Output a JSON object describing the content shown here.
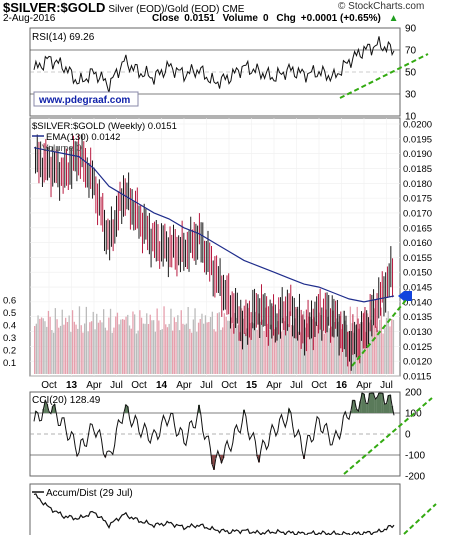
{
  "header": {
    "symbol": "$SILVER:$GOLD",
    "description": "Silver (EOD)/Gold (EOD) CME",
    "date": "2-Aug-2016",
    "close_label": "Close",
    "close_value": "0.0151",
    "volume_label": "Volume",
    "volume_value": "0",
    "chg_label": "Chg",
    "chg_value": "+0.0001 (+0.65%)",
    "chg_arrow": "up-arrow-icon",
    "brand": "© StockCharts.com"
  },
  "watermark": "www.pdegraaf.com",
  "colors": {
    "up": "#000000",
    "down": "#b0002a",
    "ema": "#1f2d8c",
    "trend": "#33aa11",
    "cci_pos": "#5a7a5a",
    "cci_neg": "#8a4a4a",
    "marker": "#1144dd"
  },
  "chart_data": [
    {
      "type": "line",
      "panel": "RSI",
      "legend": "RSI(14) 69.26",
      "ylim": [
        10,
        90
      ],
      "ticks": [
        10,
        30,
        50,
        70,
        90
      ],
      "reference_lines": [
        30,
        70
      ],
      "x": [
        "2012-08",
        "2012-10",
        "2012-12",
        "2013-02",
        "2013-04",
        "2013-06",
        "2013-08",
        "2013-10",
        "2013-12",
        "2014-02",
        "2014-04",
        "2014-06",
        "2014-08",
        "2014-10",
        "2014-12",
        "2015-02",
        "2015-04",
        "2015-06",
        "2015-08",
        "2015-10",
        "2015-12",
        "2016-02",
        "2016-04",
        "2016-06",
        "2016-08"
      ],
      "values": [
        52,
        62,
        55,
        40,
        50,
        38,
        60,
        50,
        45,
        55,
        48,
        52,
        40,
        45,
        55,
        50,
        45,
        52,
        48,
        50,
        45,
        60,
        70,
        75,
        69.26
      ]
    },
    {
      "type": "line",
      "panel": "price",
      "legends": [
        "$SILVER:$GOLD (Weekly) 0.0151",
        "EMA(130) 0.0142",
        "Volume 0"
      ],
      "ylim": [
        0.0115,
        0.02
      ],
      "ticks": [
        0.0115,
        0.012,
        0.0125,
        0.013,
        0.0135,
        0.014,
        0.0145,
        0.015,
        0.0155,
        0.016,
        0.0165,
        0.017,
        0.0175,
        0.018,
        0.0185,
        0.019,
        0.0195,
        0.02
      ],
      "tick_labels": [
        "0.0115",
        "0.0120",
        "0.0125",
        "0.0130",
        "0.0135",
        "0.0140",
        "0.0145",
        "0.0150",
        "0.0155",
        "0.0160",
        "0.0165",
        "0.0170",
        "0.0175",
        "0.0180",
        "0.0185",
        "0.0190",
        "0.0195",
        "0.0200"
      ],
      "volume_axis_ticks": [
        "0.1",
        "0.2",
        "0.3",
        "0.4",
        "0.5",
        "0.6"
      ],
      "x_axis_labels": [
        "Oct",
        "13",
        "Apr",
        "Jul",
        "Oct",
        "14",
        "Apr",
        "Jul",
        "Oct",
        "15",
        "Apr",
        "Jul",
        "Oct",
        "16",
        "Apr",
        "Jul"
      ],
      "bold_x_labels": [
        "13",
        "14",
        "15",
        "16"
      ],
      "x": [
        "2012-08",
        "2012-10",
        "2012-12",
        "2013-02",
        "2013-04",
        "2013-06",
        "2013-08",
        "2013-10",
        "2013-12",
        "2014-02",
        "2014-04",
        "2014-06",
        "2014-08",
        "2014-10",
        "2014-12",
        "2015-02",
        "2015-04",
        "2015-06",
        "2015-08",
        "2015-10",
        "2015-12",
        "2016-02",
        "2016-04",
        "2016-06",
        "2016-08"
      ],
      "price": [
        0.0188,
        0.0186,
        0.0183,
        0.019,
        0.018,
        0.016,
        0.0177,
        0.0168,
        0.016,
        0.0158,
        0.0157,
        0.0162,
        0.015,
        0.014,
        0.0132,
        0.0138,
        0.0133,
        0.0138,
        0.013,
        0.0136,
        0.0135,
        0.0125,
        0.013,
        0.014,
        0.0151
      ],
      "ema": [
        0.0192,
        0.0191,
        0.019,
        0.0189,
        0.0185,
        0.0179,
        0.0176,
        0.0173,
        0.017,
        0.0168,
        0.0165,
        0.0163,
        0.016,
        0.0157,
        0.0154,
        0.0152,
        0.015,
        0.0148,
        0.0146,
        0.0145,
        0.0143,
        0.0141,
        0.014,
        0.0141,
        0.0142
      ],
      "marker_value": 0.0142
    },
    {
      "type": "line",
      "panel": "CCI",
      "legend": "CCI(20) 128.49",
      "ylim": [
        -200,
        200
      ],
      "ticks": [
        -200,
        -100,
        0,
        100,
        200
      ],
      "tick_labels": [
        "-200",
        "-100",
        "0",
        "100",
        "200"
      ],
      "reference_lines": [
        -100,
        0,
        100
      ],
      "x": [
        "2012-08",
        "2012-10",
        "2012-12",
        "2013-02",
        "2013-04",
        "2013-06",
        "2013-08",
        "2013-10",
        "2013-12",
        "2014-02",
        "2014-04",
        "2014-06",
        "2014-08",
        "2014-10",
        "2014-12",
        "2015-02",
        "2015-04",
        "2015-06",
        "2015-08",
        "2015-10",
        "2015-12",
        "2016-02",
        "2016-04",
        "2016-06",
        "2016-08"
      ],
      "values": [
        60,
        140,
        40,
        -80,
        40,
        -120,
        120,
        30,
        -20,
        90,
        -30,
        100,
        -140,
        -60,
        80,
        -100,
        20,
        90,
        -80,
        60,
        -40,
        110,
        170,
        210,
        128.49
      ]
    },
    {
      "type": "line",
      "panel": "AccumDist",
      "legend": "Accum/Dist (29 Jul)",
      "x": [
        "2012-08",
        "2012-10",
        "2012-12",
        "2013-02",
        "2013-04",
        "2013-06",
        "2013-08",
        "2013-10",
        "2013-12",
        "2014-02",
        "2014-04",
        "2014-06",
        "2014-08",
        "2014-10",
        "2014-12",
        "2015-02",
        "2015-04",
        "2015-06",
        "2015-08",
        "2015-10",
        "2015-12",
        "2016-02",
        "2016-04",
        "2016-06",
        "2016-08"
      ],
      "values": [
        0.9,
        0.6,
        0.4,
        0.35,
        0.5,
        0.2,
        0.45,
        0.3,
        0.2,
        0.25,
        0.15,
        0.2,
        0.1,
        0.05,
        0.08,
        0.02,
        0.05,
        0.03,
        0.01,
        0.02,
        0.01,
        0.0,
        0.02,
        0.05,
        0.2
      ]
    }
  ]
}
